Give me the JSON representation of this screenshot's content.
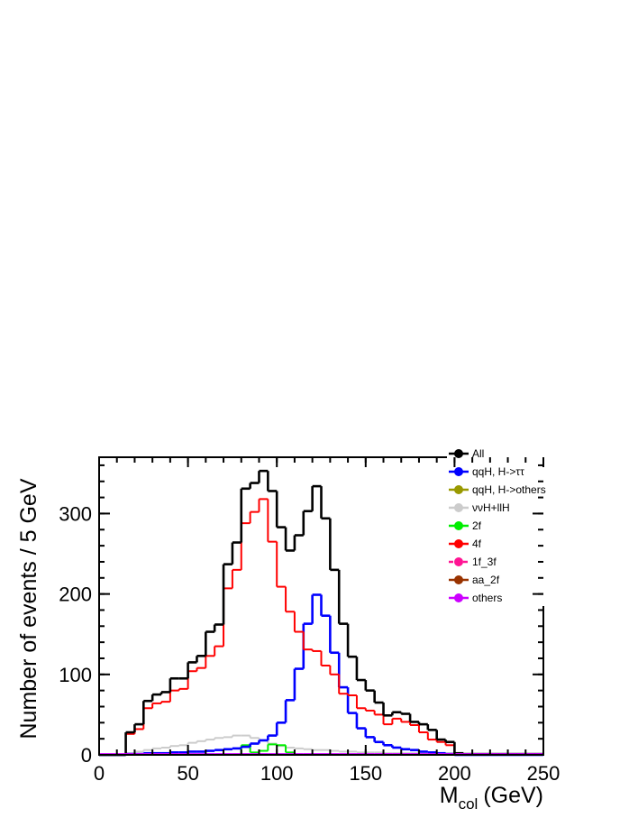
{
  "chart_data": {
    "type": "histogram",
    "xlabel": "M",
    "xlabel_sub": "col",
    "xlabel_unit": "(GeV)",
    "ylabel": "Number of events / 5 GeV",
    "bins": [
      0,
      5,
      10,
      15,
      20,
      25,
      30,
      35,
      40,
      45,
      50,
      55,
      60,
      65,
      70,
      75,
      80,
      85,
      90,
      95,
      100,
      105,
      110,
      115,
      120,
      125,
      130,
      135,
      140,
      145,
      150,
      155,
      160,
      165,
      170,
      175,
      180,
      185,
      190,
      195,
      200,
      205,
      210,
      215,
      220,
      225,
      230,
      235,
      240,
      245,
      250
    ],
    "xlim": [
      0,
      250
    ],
    "xticks": [
      0,
      50,
      100,
      150,
      200,
      250
    ],
    "ylim": [
      0,
      370
    ],
    "yticks": [
      0,
      100,
      200,
      300
    ],
    "legend": "upper right",
    "series": [
      {
        "name": "All",
        "color": "#000000",
        "values": [
          0,
          0,
          0,
          28,
          38,
          67,
          75,
          78,
          95,
          95,
          115,
          123,
          153,
          162,
          237,
          264,
          331,
          338,
          353,
          328,
          283,
          254,
          273,
          303,
          334,
          294,
          230,
          163,
          122,
          93,
          80,
          65,
          49,
          53,
          51,
          41,
          38,
          31,
          19,
          16,
          2,
          1,
          1,
          1,
          1,
          1,
          1,
          1,
          1,
          1
        ]
      },
      {
        "name": "qqH, H->ττ",
        "color": "#0000ff",
        "values": [
          0,
          0,
          0,
          1,
          1,
          2,
          2,
          2,
          3,
          3,
          4,
          4,
          5,
          6,
          7,
          8,
          10,
          14,
          18,
          24,
          40,
          68,
          107,
          163,
          199,
          173,
          127,
          84,
          52,
          33,
          22,
          16,
          12,
          9,
          7,
          6,
          4,
          3,
          2,
          1,
          0,
          0,
          0,
          0,
          0,
          0,
          0,
          0,
          0,
          0
        ]
      },
      {
        "name": "qqH, H->others",
        "color": "#999900",
        "values": [
          0,
          0,
          0,
          0,
          0,
          0,
          0,
          0,
          0,
          0,
          0,
          0,
          0,
          0,
          0,
          0,
          0,
          0,
          0,
          0,
          0,
          0,
          0,
          0,
          0,
          0,
          0,
          0,
          0,
          0,
          0,
          0,
          0,
          0,
          0,
          0,
          0,
          0,
          0,
          0,
          0,
          0,
          0,
          0,
          0,
          0,
          0,
          0,
          0,
          0
        ]
      },
      {
        "name": "ννH+llH",
        "color": "#cccccc",
        "values": [
          0,
          0,
          0,
          2,
          4,
          6,
          8,
          9,
          11,
          12,
          15,
          17,
          19,
          21,
          22,
          24,
          24,
          21,
          18,
          14,
          11,
          9,
          8,
          7,
          6,
          6,
          5,
          4,
          4,
          3,
          3,
          3,
          2,
          2,
          2,
          2,
          2,
          2,
          2,
          2,
          0,
          0,
          0,
          0,
          0,
          0,
          0,
          0,
          0,
          0
        ]
      },
      {
        "name": "2f",
        "color": "#00ee00",
        "values": [
          0,
          0,
          0,
          0,
          0,
          0,
          0,
          0,
          0,
          0,
          0,
          0,
          0,
          0,
          0,
          0,
          12,
          3,
          5,
          13,
          12,
          3,
          0,
          0,
          0,
          0,
          0,
          0,
          0,
          0,
          0,
          0,
          0,
          0,
          0,
          0,
          0,
          0,
          0,
          0,
          0,
          0,
          0,
          0,
          0,
          0,
          0,
          0,
          0,
          0
        ]
      },
      {
        "name": "4f",
        "color": "#ff0000",
        "values": [
          0,
          0,
          0,
          26,
          32,
          58,
          64,
          66,
          80,
          82,
          104,
          108,
          123,
          135,
          207,
          230,
          288,
          302,
          318,
          265,
          209,
          178,
          153,
          131,
          129,
          111,
          100,
          76,
          74,
          58,
          55,
          50,
          38,
          45,
          41,
          37,
          28,
          19,
          16,
          12,
          2,
          1,
          1,
          1,
          1,
          1,
          1,
          1,
          1,
          1
        ]
      },
      {
        "name": "1f_3f",
        "color": "#ff1493",
        "line_style": "dashed",
        "values": [
          0,
          0,
          0,
          0,
          0,
          0,
          0,
          0,
          0,
          0,
          0,
          0,
          0,
          0,
          0,
          0,
          0,
          0,
          0,
          0,
          0,
          0,
          0,
          0,
          0,
          0,
          0,
          0,
          0,
          0,
          0,
          0,
          0,
          0,
          0,
          0,
          0,
          0,
          0,
          0,
          0,
          0,
          0,
          0,
          0,
          0,
          0,
          0,
          0,
          0
        ]
      },
      {
        "name": "aa_2f",
        "color": "#993300",
        "values": [
          0,
          0,
          0,
          0,
          0,
          0,
          0,
          0,
          0,
          0,
          0,
          0,
          0,
          0,
          0,
          0,
          0,
          0,
          0,
          0,
          0,
          0,
          0,
          0,
          0,
          0,
          0,
          0,
          0,
          0,
          0,
          0,
          0,
          0,
          0,
          0,
          0,
          0,
          0,
          0,
          0,
          0,
          0,
          0,
          0,
          0,
          0,
          0,
          0,
          0
        ]
      },
      {
        "name": "others",
        "color": "#cc00ff",
        "values": [
          1,
          1,
          1,
          1,
          1,
          1,
          1,
          1,
          1,
          1,
          1,
          1,
          1,
          1,
          1,
          1,
          1,
          1,
          1,
          1,
          1,
          1,
          1,
          1,
          1,
          1,
          1,
          1,
          1,
          1,
          1,
          1,
          1,
          1,
          1,
          1,
          1,
          1,
          1,
          1,
          1,
          1,
          1,
          1,
          1,
          1,
          1,
          1,
          1,
          1
        ]
      }
    ]
  }
}
